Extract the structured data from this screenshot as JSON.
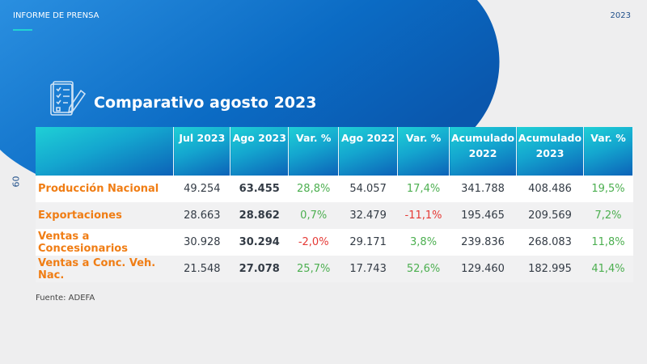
{
  "header": {
    "left": "INFORME DE PRENSA",
    "right": "2023",
    "page_number": "09"
  },
  "title": "Comparativo agosto 2023",
  "icon": "checklist-pencil-icon",
  "colors": {
    "accent": "#f07d14",
    "positive": "#4caf50",
    "negative": "#e53935",
    "blue": "#0c62b8"
  },
  "table": {
    "columns": [
      "",
      "Jul 2023",
      "Ago 2023",
      "Var. %",
      "Ago 2022",
      "Var. %",
      "Acumulado 2022",
      "Acumulado 2023",
      "Var. %"
    ],
    "rows": [
      {
        "label": "Producción Nacional",
        "cells": [
          "49.254",
          "63.455",
          "28,8%",
          "54.057",
          "17,4%",
          "341.788",
          "408.486",
          "19,5%"
        ]
      },
      {
        "label": "Exportaciones",
        "cells": [
          "28.663",
          "28.862",
          "0,7%",
          "32.479",
          "-11,1%",
          "195.465",
          "209.569",
          "7,2%"
        ]
      },
      {
        "label": "Ventas a Concesionarios",
        "cells": [
          "30.928",
          "30.294",
          "-2,0%",
          "29.171",
          "3,8%",
          "239.836",
          "268.083",
          "11,8%"
        ]
      },
      {
        "label": "Ventas a Conc. Veh. Nac.",
        "cells": [
          "21.548",
          "27.078",
          "25,7%",
          "17.743",
          "52,6%",
          "129.460",
          "182.995",
          "41,4%"
        ]
      }
    ]
  },
  "source": "Fuente: ADEFA"
}
